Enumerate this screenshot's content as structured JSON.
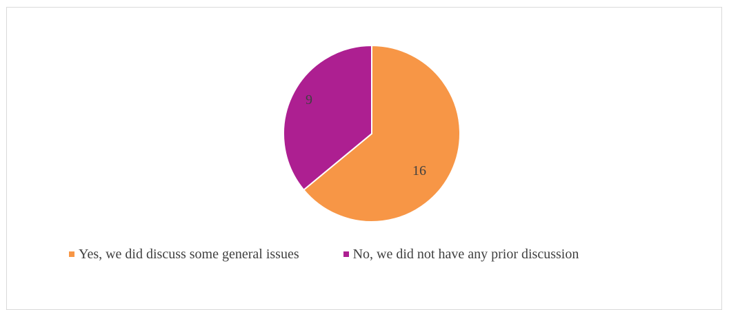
{
  "chart_data": {
    "type": "pie",
    "title": "",
    "slices": [
      {
        "label": "Yes, we did discuss some general issues",
        "value": 16,
        "color": "#f79646"
      },
      {
        "label": "No, we did not have any prior discussion",
        "value": 9,
        "color": "#ad1f91"
      }
    ],
    "legend_position": "bottom",
    "data_labels": [
      "16",
      "9"
    ]
  }
}
